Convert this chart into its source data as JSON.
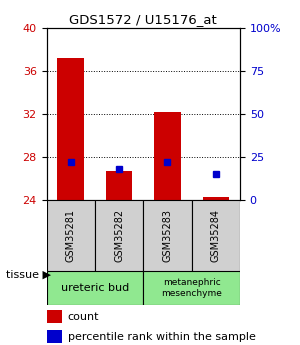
{
  "title": "GDS1572 / U15176_at",
  "samples": [
    "GSM35281",
    "GSM35282",
    "GSM35283",
    "GSM35284"
  ],
  "red_values": [
    37.2,
    26.7,
    32.2,
    24.3
  ],
  "red_base": 24.0,
  "blue_pct": [
    22,
    18,
    22,
    15
  ],
  "ylim": [
    24,
    40
  ],
  "ylim_right": [
    0,
    100
  ],
  "yticks_left": [
    24,
    28,
    32,
    36,
    40
  ],
  "ytick_labels_left": [
    "24",
    "28",
    "32",
    "36",
    "40"
  ],
  "yticks_right_vals": [
    0,
    25,
    50,
    75,
    100
  ],
  "ytick_labels_right": [
    "0",
    "25",
    "50",
    "75",
    "100%"
  ],
  "gridlines": [
    28,
    32,
    36
  ],
  "tissue_labels": [
    "ureteric bud",
    "metanephric\nmesenchyme"
  ],
  "bar_color": "#cc0000",
  "blue_color": "#0000cc",
  "bar_width": 0.55,
  "tick_color_left": "#cc0000",
  "tick_color_right": "#0000cc",
  "sample_box_color": "#d0d0d0",
  "tissue_box_color": "#90e890",
  "fig_bg": "#ffffff"
}
